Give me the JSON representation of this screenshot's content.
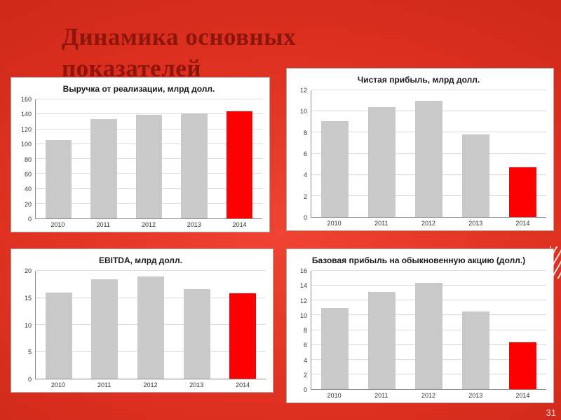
{
  "slide": {
    "title_line1": "Динамика основных",
    "title_line2": "показателей",
    "page_number": "31"
  },
  "chart_data": [
    {
      "type": "bar",
      "title": "Выручка от реализации, млрд долл.",
      "categories": [
        "2010",
        "2011",
        "2012",
        "2013",
        "2014"
      ],
      "values": [
        105,
        134,
        139,
        141,
        144
      ],
      "ylim": [
        0,
        160
      ],
      "ytick_step": 20,
      "xlabel": "",
      "ylabel": "",
      "grid": true,
      "legend": false,
      "bar_color": "#c9c9c9",
      "highlight_last_color": "#fe0000"
    },
    {
      "type": "bar",
      "title": "Чистая прибыль, млрд долл.",
      "categories": [
        "2010",
        "2011",
        "2012",
        "2013",
        "2014"
      ],
      "values": [
        9.1,
        10.4,
        11,
        7.8,
        4.7
      ],
      "ylim": [
        0,
        12
      ],
      "ytick_step": 2,
      "xlabel": "",
      "ylabel": "",
      "grid": true,
      "legend": false,
      "bar_color": "#c9c9c9",
      "highlight_last_color": "#fe0000"
    },
    {
      "type": "bar",
      "title": "EBITDA, млрд долл.",
      "categories": [
        "2010",
        "2011",
        "2012",
        "2013",
        "2014"
      ],
      "values": [
        16,
        18.5,
        18.9,
        16.6,
        15.8
      ],
      "ylim": [
        0,
        20
      ],
      "ytick_step": 5,
      "xlabel": "",
      "ylabel": "",
      "grid": true,
      "legend": false,
      "bar_color": "#c9c9c9",
      "highlight_last_color": "#fe0000"
    },
    {
      "type": "bar",
      "title": "Базовая прибыль на обыкновенную акцию (долл.)",
      "categories": [
        "2010",
        "2011",
        "2012",
        "2013",
        "2014"
      ],
      "values": [
        11,
        13.2,
        14.4,
        10.5,
        6.3
      ],
      "ylim": [
        0,
        16
      ],
      "ytick_step": 2,
      "xlabel": "",
      "ylabel": "",
      "grid": true,
      "legend": false,
      "bar_color": "#c9c9c9",
      "highlight_last_color": "#fe0000"
    }
  ]
}
